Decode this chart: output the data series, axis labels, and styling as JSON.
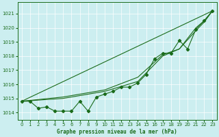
{
  "xlabel": "Graphe pression niveau de la mer (hPa)",
  "xlim": [
    -0.5,
    23.5
  ],
  "ylim": [
    1013.5,
    1021.8
  ],
  "yticks": [
    1014,
    1015,
    1016,
    1017,
    1018,
    1019,
    1020,
    1021
  ],
  "xticks": [
    0,
    1,
    2,
    3,
    4,
    5,
    6,
    7,
    8,
    9,
    10,
    11,
    12,
    13,
    14,
    15,
    16,
    17,
    18,
    19,
    20,
    21,
    22,
    23
  ],
  "bg_color": "#cceef0",
  "line_color": "#1a6b1a",
  "line_smooth1": [
    [
      0,
      1014.8
    ],
    [
      23,
      1021.2
    ]
  ],
  "line_smooth2": [
    [
      0,
      1014.8
    ],
    [
      23,
      1021.2
    ]
  ],
  "line_detail": [
    1014.8,
    1014.8,
    1014.3,
    1014.4,
    1014.1,
    1014.1,
    1014.1,
    1014.8,
    1014.1,
    1015.1,
    1015.3,
    1015.5,
    1015.8,
    1015.8,
    1016.1,
    1016.7,
    1017.8,
    1018.2,
    1018.2,
    1019.1,
    1018.5,
    1019.9,
    1020.5,
    1021.2
  ],
  "line_smooth3": [
    [
      0,
      1014.8
    ],
    [
      5,
      1015.0
    ],
    [
      10,
      1015.5
    ],
    [
      14,
      1016.2
    ],
    [
      17,
      1018.0
    ],
    [
      19,
      1018.5
    ],
    [
      21,
      1019.8
    ],
    [
      22,
      1020.4
    ],
    [
      23,
      1021.2
    ]
  ],
  "line_smooth4": [
    [
      0,
      1014.8
    ],
    [
      5,
      1015.1
    ],
    [
      10,
      1015.6
    ],
    [
      14,
      1016.5
    ],
    [
      17,
      1018.1
    ],
    [
      19,
      1018.5
    ],
    [
      21,
      1020.0
    ],
    [
      22,
      1020.5
    ],
    [
      23,
      1021.2
    ]
  ]
}
